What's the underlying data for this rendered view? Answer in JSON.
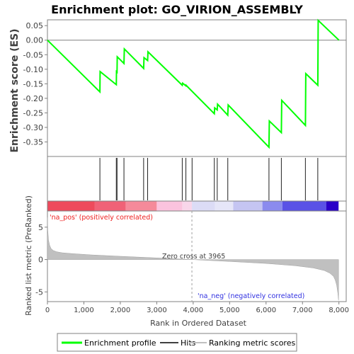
{
  "chart_data": {
    "type": "line",
    "title": "Enrichment plot: GO_VIRION_ASSEMBLY",
    "xlabel": "Rank in Ordered Dataset",
    "es_panel": {
      "ylabel": "Enrichment score (ES)",
      "ylim": [
        -0.4,
        0.07
      ],
      "yticks": [
        0.05,
        0.0,
        -0.05,
        -0.1,
        -0.15,
        -0.2,
        -0.25,
        -0.3,
        -0.35
      ],
      "ytick_labels": [
        "0.05",
        "0.00",
        "-0.05",
        "-0.10",
        "-0.15",
        "-0.20",
        "-0.25",
        "-0.30",
        "-0.35"
      ],
      "series": [
        {
          "name": "Enrichment profile",
          "color": "#00ff00",
          "x": [
            0,
            1440,
            1445,
            1890,
            1895,
            1910,
            1915,
            2100,
            2110,
            2640,
            2650,
            2750,
            2760,
            3700,
            3710,
            3800,
            3805,
            4580,
            4590,
            4660,
            4670,
            4950,
            4960,
            6080,
            6090,
            6420,
            6430,
            7080,
            7090,
            7420,
            7430,
            8000
          ],
          "y": [
            0.0,
            -0.178,
            -0.108,
            -0.153,
            -0.108,
            -0.11,
            -0.057,
            -0.08,
            -0.03,
            -0.097,
            -0.06,
            -0.07,
            -0.04,
            -0.155,
            -0.148,
            -0.157,
            -0.155,
            -0.253,
            -0.233,
            -0.24,
            -0.22,
            -0.258,
            -0.223,
            -0.368,
            -0.278,
            -0.318,
            -0.207,
            -0.293,
            -0.115,
            -0.155,
            0.068,
            0.0
          ]
        }
      ]
    },
    "hits_panel": {
      "label": "Hits",
      "x": [
        1440,
        1890,
        1910,
        2100,
        2640,
        2750,
        3700,
        3800,
        3970,
        4580,
        4660,
        4950,
        6080,
        6420,
        7080,
        7420
      ]
    },
    "ranking_panel": {
      "ylabel": "Ranked list metric (PreRanked)",
      "ylim": [
        -6.5,
        7.5
      ],
      "yticks": [
        5,
        0,
        -5
      ],
      "ytick_labels": [
        "5",
        "0",
        "-5"
      ],
      "xlim": [
        0,
        8200
      ],
      "xticks": [
        0,
        1000,
        2000,
        3000,
        4000,
        5000,
        6000,
        7000,
        8000
      ],
      "xtick_labels": [
        "0",
        "1,000",
        "2,000",
        "3,000",
        "4,000",
        "5,000",
        "6,000",
        "7,000",
        "8,000"
      ],
      "profile_x": [
        0,
        10,
        30,
        60,
        100,
        160,
        250,
        400,
        700,
        1200,
        2000,
        3000,
        3965,
        5000,
        6000,
        6800,
        7300,
        7600,
        7750,
        7850,
        7900,
        7940,
        7970,
        7990
      ],
      "profile_y": [
        6.5,
        4.5,
        3.0,
        2.2,
        1.7,
        1.4,
        1.2,
        1.05,
        0.9,
        0.72,
        0.5,
        0.25,
        0.0,
        -0.3,
        -0.6,
        -0.95,
        -1.3,
        -1.7,
        -2.1,
        -2.6,
        -3.2,
        -4.0,
        -5.2,
        -6.3
      ],
      "series": [
        {
          "name": "Ranking metric scores",
          "color": "#c0c0c0"
        }
      ],
      "annotations": {
        "zero_cross": "Zero cross at 3965",
        "zero_cross_x": 3965,
        "pos_label": "'na_pos' (positively correlated)",
        "neg_label": "'na_neg' (negatively correlated)"
      }
    },
    "heat_bar": {
      "xmax": 7990,
      "segments": [
        {
          "x0": 0,
          "x1": 1300,
          "color": "#ee4a5c"
        },
        {
          "x0": 1300,
          "x1": 2150,
          "color": "#f06277"
        },
        {
          "x0": 2150,
          "x1": 3000,
          "color": "#f58a9a"
        },
        {
          "x0": 3000,
          "x1": 3700,
          "color": "#fbc3de"
        },
        {
          "x0": 3700,
          "x1": 3965,
          "color": "#f9d6ea"
        },
        {
          "x0": 3965,
          "x1": 4600,
          "color": "#dcdcf6"
        },
        {
          "x0": 4600,
          "x1": 5100,
          "color": "#e6e6f8"
        },
        {
          "x0": 5100,
          "x1": 5900,
          "color": "#c5c5f2"
        },
        {
          "x0": 5900,
          "x1": 6450,
          "color": "#8b8bee"
        },
        {
          "x0": 6450,
          "x1": 7650,
          "color": "#5a52e6"
        },
        {
          "x0": 7650,
          "x1": 7990,
          "color": "#2a00c8"
        }
      ]
    },
    "legend": {
      "placement": "bottom",
      "items": [
        {
          "label": "Enrichment profile",
          "color": "#00ff00"
        },
        {
          "label": "Hits",
          "color": "#404040"
        },
        {
          "label": "Ranking metric scores",
          "color": "#c0c0c0"
        }
      ]
    }
  }
}
